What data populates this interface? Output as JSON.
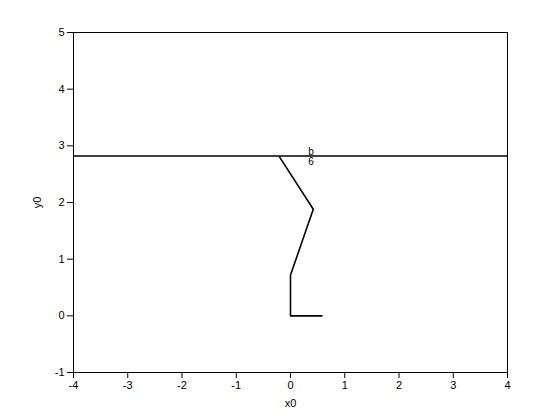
{
  "chart_data": {
    "type": "line",
    "x_label": "x0",
    "y_label": "y0",
    "xlim": [
      -4,
      4
    ],
    "xticks": [
      -4,
      -3,
      -2,
      -1,
      0,
      1,
      2,
      3,
      4
    ],
    "ylim": [
      -1,
      5
    ],
    "yticks": [
      -1,
      0,
      1,
      2,
      3,
      4,
      5
    ],
    "grid": false,
    "series": [
      {
        "color": "#000000",
        "x": [
          -4,
          4
        ],
        "values": [
          2.82,
          2.82
        ]
      },
      {
        "color": "#000000",
        "x": [
          0.58,
          0,
          0,
          0.42,
          -0.2
        ],
        "values": [
          0,
          0,
          0.72,
          1.88,
          2.8
        ]
      }
    ],
    "annotations": [
      {
        "text": "b",
        "x": 0.38,
        "y": 2.9
      },
      {
        "text": "6",
        "x": 0.38,
        "y": 2.72
      }
    ]
  }
}
